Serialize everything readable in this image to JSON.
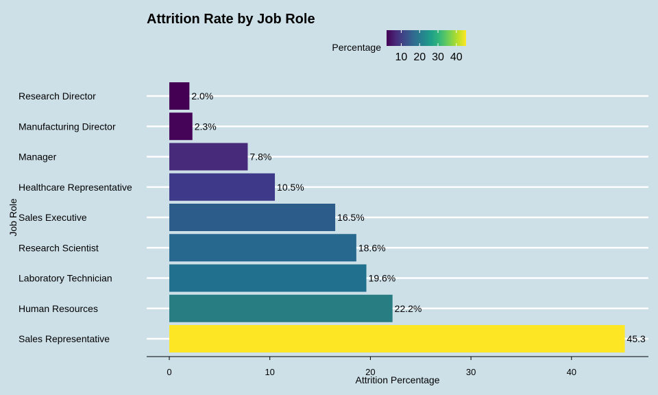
{
  "chart_data": {
    "type": "bar",
    "orientation": "horizontal",
    "title": "Attrition Rate by Job Role",
    "xlabel": "Attrition Percentage",
    "ylabel": "Job Role",
    "xlim": [
      0,
      46.5
    ],
    "x_ticks": [
      "0",
      "10",
      "20",
      "30",
      "40"
    ],
    "grid": "horizontal major gridlines",
    "background": "#cde0e8",
    "categories": [
      "Research Director",
      "Manufacturing Director",
      "Manager",
      "Healthcare Representative",
      "Sales Executive",
      "Research Scientist",
      "Laboratory Technician",
      "Human Resources",
      "Sales Representative"
    ],
    "values": [
      2.0,
      2.3,
      7.8,
      10.5,
      16.5,
      18.6,
      19.6,
      22.2,
      45.3
    ],
    "data_labels": [
      "2.0%",
      "2.3%",
      "7.8%",
      "10.5%",
      "16.5%",
      "18.6%",
      "19.6%",
      "22.2%",
      "45.3"
    ],
    "colors": [
      "#440154",
      "#450458",
      "#472a7a",
      "#3e3a89",
      "#2c5c8a",
      "#27688e",
      "#21718e",
      "#277d81",
      "#fde725"
    ],
    "legend": {
      "title": "Percentage",
      "placement": "top",
      "ticks": [
        "10",
        "20",
        "30",
        "40"
      ],
      "tick_values": [
        10,
        20,
        30,
        40
      ],
      "range": [
        2.0,
        45.3
      ],
      "colormap": [
        "#440154",
        "#482878",
        "#3e4989",
        "#31688e",
        "#26828e",
        "#1f9e89",
        "#35b779",
        "#6ece58",
        "#b5de2b",
        "#fde725"
      ]
    }
  }
}
